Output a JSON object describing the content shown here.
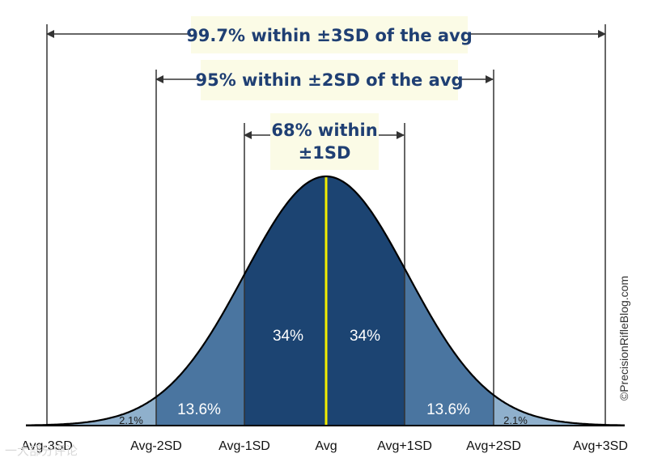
{
  "ranges": {
    "three_sd": "99.7% within ±3SD of the avg",
    "two_sd": "95% within ±2SD of the avg",
    "one_sd_line1": "68% within",
    "one_sd_line2": "±1SD"
  },
  "regions": {
    "center_left": "34%",
    "center_right": "34%",
    "mid_left": "13.6%",
    "mid_right": "13.6%",
    "tail_left": "2.1%",
    "tail_right": "2.1%"
  },
  "axis_labels": [
    "Avg-3SD",
    "Avg-2SD",
    "Avg-1SD",
    "Avg",
    "Avg+1SD",
    "Avg+2SD",
    "Avg+3SD"
  ],
  "credit": "©PrecisionRifleBlog.com",
  "watermark": "一大部分评论",
  "colors": {
    "center_fill": "#1c4472",
    "mid_fill": "#4a75a0",
    "tail_fill": "#8fb0cc",
    "mean_line": "#f2ee00",
    "outline": "#000000",
    "label_box": "#fbfbe6",
    "range_text": "#1f3f73"
  }
}
